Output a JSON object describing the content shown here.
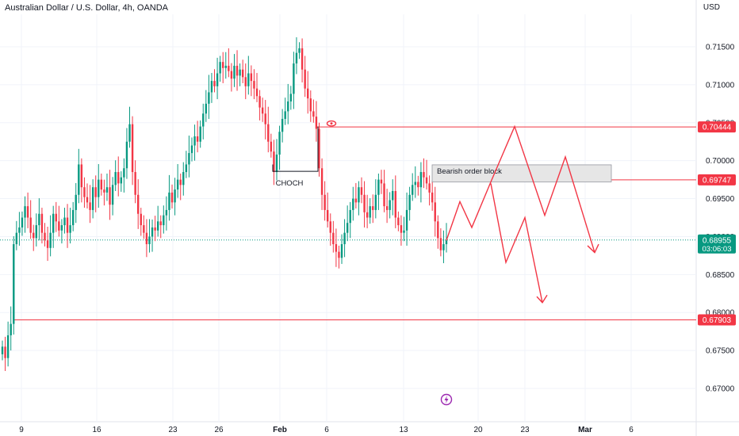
{
  "header": {
    "title": "Australian Dollar / U.S. Dollar, 4h, OANDA",
    "currency": "USD"
  },
  "colors": {
    "up": "#089981",
    "down": "#f23645",
    "grid": "#f0f3fa",
    "axis_text": "#131722",
    "drawing": "#f23645",
    "price_line": "#089981"
  },
  "chart_data": {
    "type": "candlestick",
    "title": "Australian Dollar / U.S. Dollar, 4h, OANDA",
    "ylim": [
      0.6665,
      0.7185
    ],
    "y_ticks": [
      "0.71500",
      "0.71000",
      "0.70500",
      "0.70000",
      "0.69500",
      "0.69000",
      "0.68500",
      "0.68000",
      "0.67500",
      "0.67000"
    ],
    "x_ticks": [
      "9",
      "16",
      "23",
      "26",
      "Feb",
      "6",
      "13",
      "20",
      "23",
      "Mar",
      "6"
    ],
    "horizontal_lines": [
      {
        "price": 0.70444,
        "label": "0.70444"
      },
      {
        "price": 0.69747,
        "label": "0.69747"
      },
      {
        "price": 0.67903,
        "label": "0.67903"
      }
    ],
    "current_price": {
      "value": 0.68955,
      "label": "0.68955",
      "countdown": "03:06:03"
    },
    "annotations": {
      "choch": "CHOCH",
      "order_block": "Bearish order block"
    },
    "path_sketch": [
      0.6895,
      0.6946,
      0.6912,
      0.6972,
      0.7045,
      0.6928,
      0.7005,
      0.6879
    ],
    "closes": [
      0.6755,
      0.674,
      0.677,
      0.6785,
      0.689,
      0.6905,
      0.6912,
      0.6925,
      0.694,
      0.6925,
      0.6905,
      0.6898,
      0.6915,
      0.693,
      0.6905,
      0.6895,
      0.6885,
      0.6905,
      0.693,
      0.692,
      0.6908,
      0.6915,
      0.6925,
      0.6905,
      0.6915,
      0.6935,
      0.6955,
      0.6995,
      0.6965,
      0.6952,
      0.6945,
      0.6935,
      0.6965,
      0.6952,
      0.6975,
      0.6962,
      0.6958,
      0.6965,
      0.6942,
      0.6968,
      0.6985,
      0.697,
      0.6978,
      0.699,
      0.7025,
      0.7048,
      0.6985,
      0.6955,
      0.693,
      0.6915,
      0.6905,
      0.689,
      0.69,
      0.6912,
      0.6908,
      0.692,
      0.6915,
      0.6928,
      0.6935,
      0.6958,
      0.6945,
      0.6962,
      0.6975,
      0.6968,
      0.6985,
      0.6995,
      0.701,
      0.702,
      0.7032,
      0.7025,
      0.7045,
      0.7062,
      0.7075,
      0.709,
      0.7105,
      0.7098,
      0.7115,
      0.713,
      0.7122,
      0.7125,
      0.7118,
      0.7108,
      0.7125,
      0.7112,
      0.712,
      0.711,
      0.7098,
      0.7115,
      0.7105,
      0.7095,
      0.7085,
      0.707,
      0.7062,
      0.7048,
      0.7025,
      0.7012,
      0.6985,
      0.7008,
      0.7038,
      0.7055,
      0.7065,
      0.7078,
      0.7088,
      0.7128,
      0.7142,
      0.7148,
      0.712,
      0.7095,
      0.7082,
      0.7065,
      0.7058,
      0.7042,
      0.699,
      0.6955,
      0.6935,
      0.692,
      0.6905,
      0.689,
      0.688,
      0.6872,
      0.689,
      0.6905,
      0.6918,
      0.6935,
      0.695,
      0.6945,
      0.6965,
      0.6955,
      0.6932,
      0.6925,
      0.694,
      0.6935,
      0.6955,
      0.6975,
      0.697,
      0.694,
      0.6935,
      0.6948,
      0.696,
      0.6925,
      0.6915,
      0.6905,
      0.6908,
      0.6935,
      0.6955,
      0.6968,
      0.6972,
      0.6965,
      0.6985,
      0.6978,
      0.697,
      0.6958,
      0.6945,
      0.692,
      0.6898,
      0.6882,
      0.689,
      0.6895
    ]
  }
}
